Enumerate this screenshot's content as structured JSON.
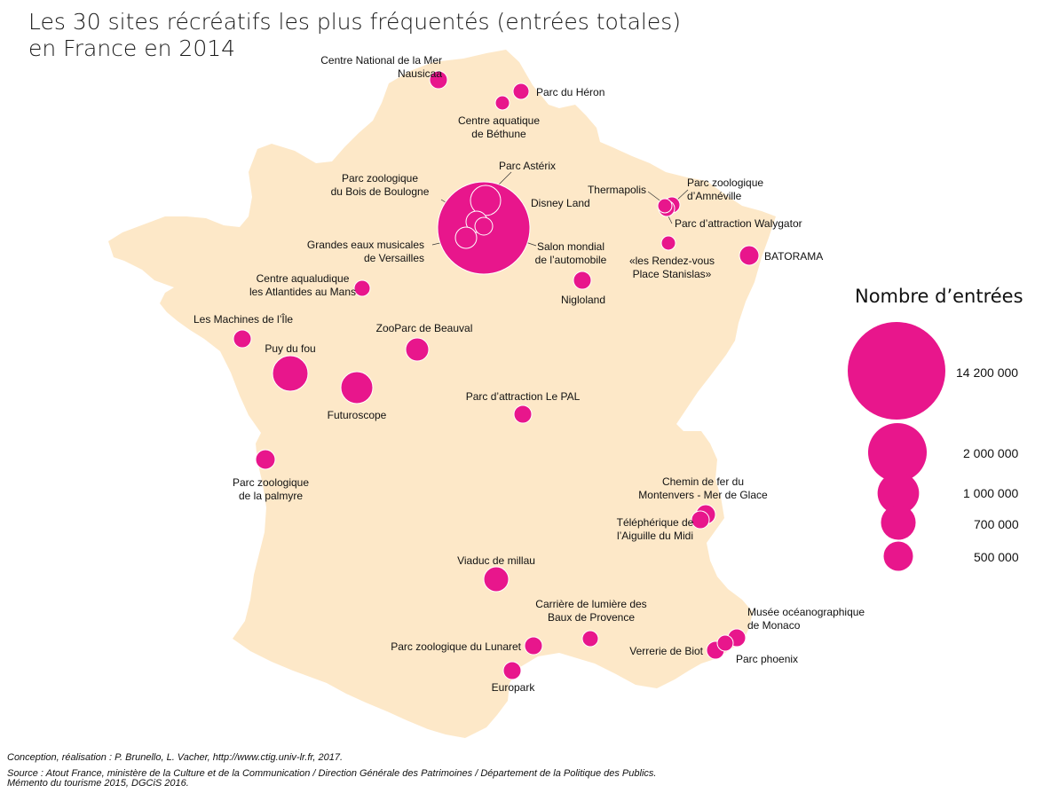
{
  "title_line1": "Les 30 sites récréatifs les plus fréquentés (entrées totales)",
  "title_line2": "en France en 2014",
  "credit_line1": "Conception, réalisation : P. Brunello, L. Vacher,  http://www.ctig.univ-lr.fr, 2017.",
  "credit_line2": "Source : Atout France, ministère de la Culture et de la Communication / Direction Générale des Patrimoines / Département de la Politique des Publics.",
  "credit_line3": "Mémento du tourisme 2015, DGCiS 2016.",
  "colors": {
    "circle": "#e8168c",
    "land": "#fde8c8",
    "circle_outline": "#ffffff"
  },
  "legend": {
    "title": "Nombre d’entrées",
    "items": [
      {
        "label": "14 200 000",
        "value": 14200000
      },
      {
        "label": "2 000 000",
        "value": 2000000
      },
      {
        "label": "1 000 000",
        "value": 1000000
      },
      {
        "label": "700 000",
        "value": 700000
      },
      {
        "label": "500 000",
        "value": 500000
      }
    ]
  },
  "sites": [
    {
      "name": "Nausicaa",
      "label": [
        "Centre National de la Mer",
        "Nausicaa"
      ]
    },
    {
      "name": "Heron",
      "label": [
        "Parc du Héron"
      ]
    },
    {
      "name": "Bethune",
      "label": [
        "Centre aquatique",
        "de Béthune"
      ]
    },
    {
      "name": "Asterix",
      "label": [
        "Parc Astérix"
      ]
    },
    {
      "name": "Disney",
      "label": [
        "Disney Land"
      ]
    },
    {
      "name": "Boulogne",
      "label": [
        "Parc zoologique",
        "du Bois de Boulogne"
      ]
    },
    {
      "name": "Versailles",
      "label": [
        "Grandes eaux musicales",
        "de Versailles"
      ]
    },
    {
      "name": "Salon",
      "label": [
        "Salon mondial",
        "de l’automobile"
      ]
    },
    {
      "name": "Thermapolis",
      "label": [
        "Thermapolis"
      ]
    },
    {
      "name": "Amneville",
      "label": [
        "Parc zoologique",
        "d’Amnéville"
      ]
    },
    {
      "name": "Walygator",
      "label": [
        "Parc d’attraction Walygator"
      ]
    },
    {
      "name": "Stanislas",
      "label": [
        "«les Rendez-vous",
        "Place Stanislas»"
      ]
    },
    {
      "name": "Batorama",
      "label": [
        "BATORAMA"
      ]
    },
    {
      "name": "Nigloland",
      "label": [
        "Nigloland"
      ]
    },
    {
      "name": "Atlantides",
      "label": [
        "Centre aqualudique",
        "les Atlantides au Mans"
      ]
    },
    {
      "name": "Machines",
      "label": [
        "Les Machines de l’Île"
      ]
    },
    {
      "name": "Puydufou",
      "label": [
        "Puy du fou"
      ]
    },
    {
      "name": "Beauval",
      "label": [
        "ZooParc de Beauval"
      ]
    },
    {
      "name": "Futuroscope",
      "label": [
        "Futuroscope"
      ]
    },
    {
      "name": "LePal",
      "label": [
        "Parc d’attraction Le PAL"
      ]
    },
    {
      "name": "Palmyre",
      "label": [
        "Parc zoologique",
        "de la palmyre"
      ]
    },
    {
      "name": "Montenvers",
      "label": [
        "Chemin de fer du",
        "Montenvers - Mer de Glace"
      ]
    },
    {
      "name": "AiguilleMidi",
      "label": [
        "Téléphérique de",
        "l’Aiguille du Midi"
      ]
    },
    {
      "name": "Millau",
      "label": [
        "Viaduc de millau"
      ]
    },
    {
      "name": "Baux",
      "label": [
        "Carrière de lumière des",
        "Baux de Provence"
      ]
    },
    {
      "name": "Monaco",
      "label": [
        "Musée océanographique",
        "de Monaco"
      ]
    },
    {
      "name": "Lunaret",
      "label": [
        "Parc zoologique du Lunaret"
      ]
    },
    {
      "name": "Biot",
      "label": [
        "Verrerie de Biot"
      ]
    },
    {
      "name": "Phoenix",
      "label": [
        "Parc phoenix"
      ]
    },
    {
      "name": "Europark",
      "label": [
        "Europark"
      ]
    }
  ]
}
